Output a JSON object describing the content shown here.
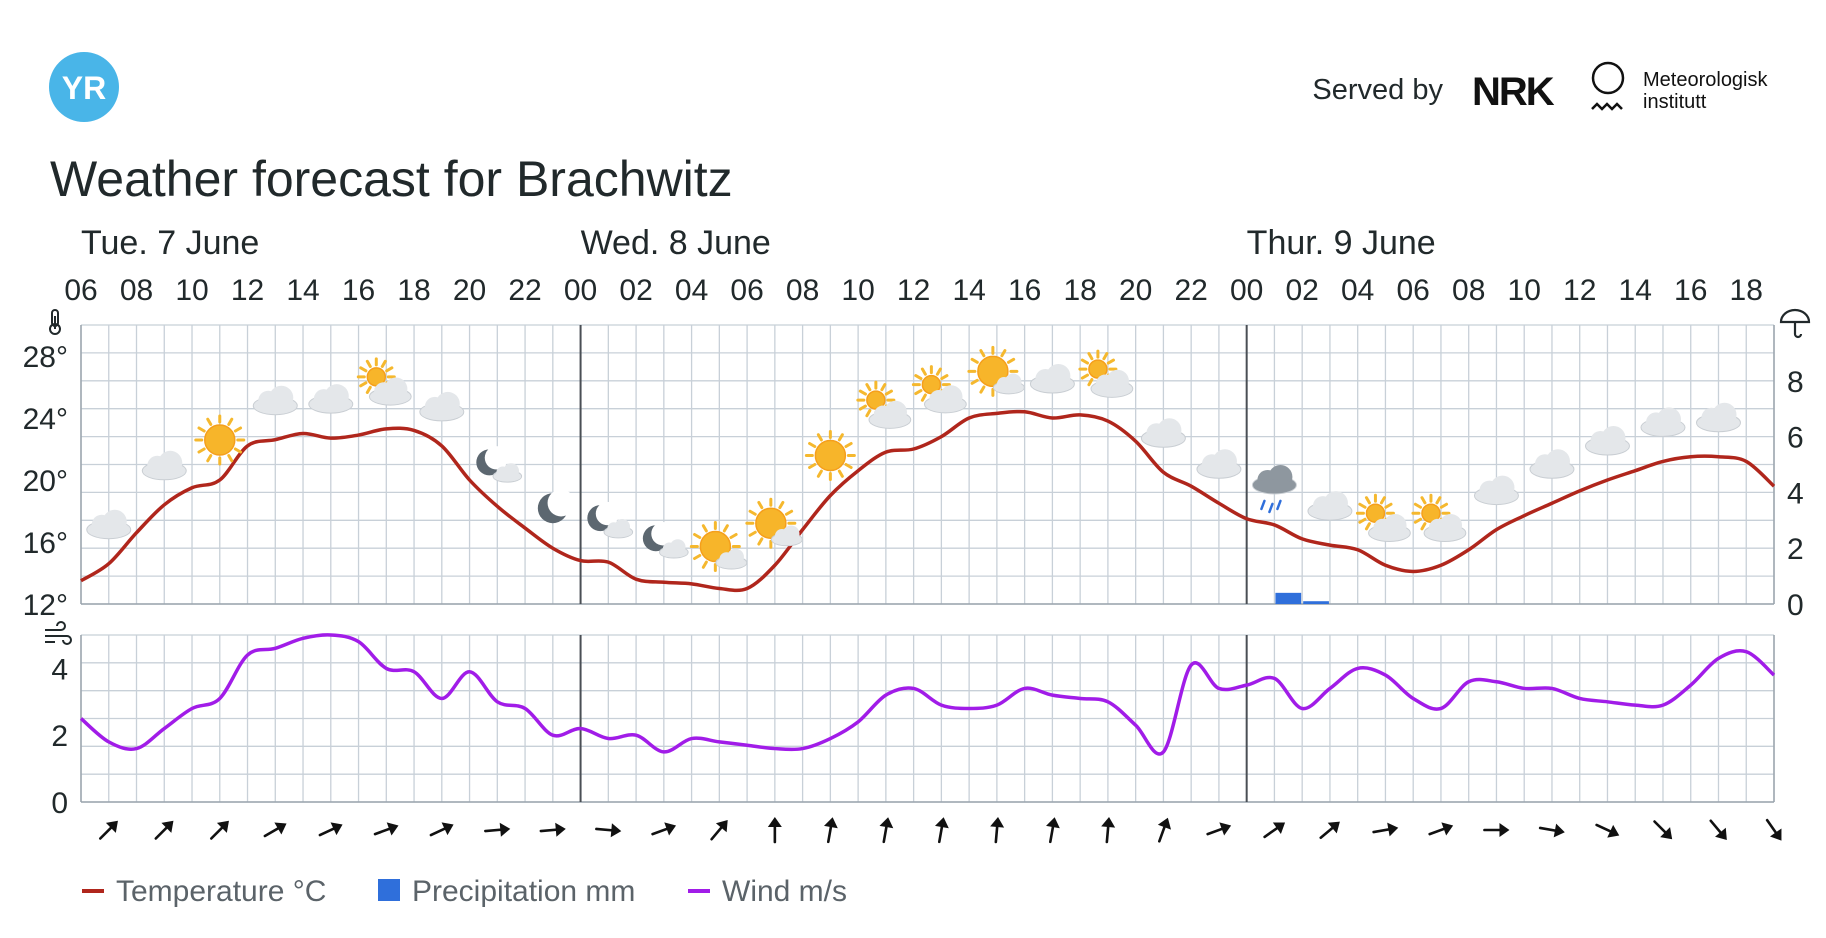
{
  "header": {
    "logo_text": "YR",
    "served_by": "Served by",
    "nrk_logo_text": "NRK",
    "met_logo_line1": "Meteorologisk",
    "met_logo_line2": "institutt"
  },
  "title": "Weather forecast for Brachwitz",
  "days": [
    {
      "label": "Tue. 7 June",
      "hour_index": 0
    },
    {
      "label": "Wed. 8 June",
      "hour_index": 18
    },
    {
      "label": "Thur. 9 June",
      "hour_index": 42
    }
  ],
  "hour_labels": [
    "06",
    "08",
    "10",
    "12",
    "14",
    "16",
    "18",
    "20",
    "22",
    "00",
    "02",
    "04",
    "06",
    "08",
    "10",
    "12",
    "14",
    "16",
    "18",
    "20",
    "22",
    "00",
    "02",
    "04",
    "06",
    "08",
    "10",
    "12",
    "14",
    "16",
    "18"
  ],
  "top_axis_left_ticks": [
    "12°",
    "16°",
    "20°",
    "24°",
    "28°"
  ],
  "top_axis_right_ticks": [
    "0",
    "2",
    "4",
    "6",
    "8"
  ],
  "bottom_axis_ticks": [
    "0",
    "2",
    "4"
  ],
  "axis_icons": {
    "temperature": "thermometer-icon",
    "precipitation": "umbrella-icon",
    "wind": "wind-icon"
  },
  "colors": {
    "temperature": "#b0261c",
    "precipitation": "#2f6fdb",
    "wind": "#a11ce8",
    "grid": "#c8d0d8",
    "day_divider": "#4a4f55"
  },
  "chart_data": [
    {
      "type": "line",
      "hours_from_start": [
        0,
        1,
        2,
        3,
        4,
        5,
        6,
        7,
        8,
        9,
        10,
        11,
        12,
        13,
        14,
        15,
        16,
        17,
        18,
        19,
        20,
        21,
        22,
        23,
        24,
        25,
        26,
        27,
        28,
        29,
        30,
        31,
        32,
        33,
        34,
        35,
        36,
        37,
        38,
        39,
        40,
        41,
        42,
        43,
        44,
        45,
        46,
        47,
        48,
        49,
        50,
        51,
        52,
        53,
        54,
        55,
        56,
        57,
        58,
        59,
        60,
        61
      ],
      "x_start_label": "Tue. 7 June 06",
      "x_step_hours": 1,
      "ylim": [
        12,
        30
      ],
      "series": [
        {
          "name": "Temperature °C",
          "axis": "left",
          "values": [
            13.5,
            14.6,
            16.6,
            18.4,
            19.5,
            20.0,
            22.2,
            22.6,
            23.0,
            22.7,
            22.9,
            23.3,
            23.2,
            22.2,
            20.0,
            18.3,
            16.9,
            15.6,
            14.8,
            14.7,
            13.6,
            13.4,
            13.3,
            13.0,
            13.0,
            14.5,
            16.8,
            19.0,
            20.6,
            21.8,
            22.0,
            22.8,
            24.0,
            24.3,
            24.4,
            24.0,
            24.2,
            23.8,
            22.5,
            20.5,
            19.6,
            18.5,
            17.5,
            17.1,
            16.2,
            15.8,
            15.5,
            14.5,
            14.1,
            14.5,
            15.5,
            16.8,
            17.7,
            18.5,
            19.3,
            20.0,
            20.6,
            21.2,
            21.5,
            21.5,
            21.2,
            19.6
          ]
        }
      ]
    },
    {
      "type": "bar",
      "hours_from_start": [
        43,
        44
      ],
      "ylim": [
        0,
        10
      ],
      "series": [
        {
          "name": "Precipitation mm",
          "axis": "right",
          "values": [
            0.4,
            0.1
          ]
        }
      ]
    },
    {
      "type": "line",
      "hours_from_start": [
        0,
        1,
        2,
        3,
        4,
        5,
        6,
        7,
        8,
        9,
        10,
        11,
        12,
        13,
        14,
        15,
        16,
        17,
        18,
        19,
        20,
        21,
        22,
        23,
        24,
        25,
        26,
        27,
        28,
        29,
        30,
        31,
        32,
        33,
        34,
        35,
        36,
        37,
        38,
        39,
        40,
        41,
        42,
        43,
        44,
        45,
        46,
        47,
        48,
        49,
        50,
        51,
        52,
        53,
        54,
        55,
        56,
        57,
        58,
        59,
        60,
        61
      ],
      "ylim": [
        0,
        5
      ],
      "series": [
        {
          "name": "Wind m/s",
          "values": [
            2.5,
            1.8,
            1.6,
            2.2,
            2.8,
            3.1,
            4.4,
            4.6,
            4.9,
            5.0,
            4.8,
            4.0,
            3.9,
            3.1,
            3.9,
            3.0,
            2.8,
            2.0,
            2.2,
            1.9,
            2.0,
            1.5,
            1.9,
            1.8,
            1.7,
            1.6,
            1.6,
            1.9,
            2.4,
            3.2,
            3.4,
            2.9,
            2.8,
            2.9,
            3.4,
            3.2,
            3.1,
            3.0,
            2.3,
            1.5,
            4.1,
            3.4,
            3.5,
            3.7,
            2.8,
            3.4,
            4.0,
            3.8,
            3.1,
            2.8,
            3.6,
            3.6,
            3.4,
            3.4,
            3.1,
            3.0,
            2.9,
            2.9,
            3.5,
            4.3,
            4.5,
            3.8
          ]
        }
      ]
    }
  ],
  "weather_symbols": [
    {
      "hour": 1,
      "symbol": "cloudy"
    },
    {
      "hour": 3,
      "symbol": "cloudy"
    },
    {
      "hour": 5,
      "symbol": "clear-sun"
    },
    {
      "hour": 7,
      "symbol": "cloudy"
    },
    {
      "hour": 9,
      "symbol": "cloudy"
    },
    {
      "hour": 11,
      "symbol": "partly-cloudy-day"
    },
    {
      "hour": 13,
      "symbol": "cloudy"
    },
    {
      "hour": 15,
      "symbol": "partly-cloudy-night"
    },
    {
      "hour": 17,
      "symbol": "clear-night"
    },
    {
      "hour": 19,
      "symbol": "partly-cloudy-night"
    },
    {
      "hour": 21,
      "symbol": "partly-cloudy-night"
    },
    {
      "hour": 23,
      "symbol": "fair-day"
    },
    {
      "hour": 25,
      "symbol": "fair-day"
    },
    {
      "hour": 27,
      "symbol": "clear-sun"
    },
    {
      "hour": 29,
      "symbol": "partly-cloudy-day"
    },
    {
      "hour": 31,
      "symbol": "partly-cloudy-day"
    },
    {
      "hour": 33,
      "symbol": "fair-day"
    },
    {
      "hour": 35,
      "symbol": "cloudy"
    },
    {
      "hour": 37,
      "symbol": "partly-cloudy-day"
    },
    {
      "hour": 39,
      "symbol": "cloudy"
    },
    {
      "hour": 41,
      "symbol": "cloudy"
    },
    {
      "hour": 43,
      "symbol": "rain"
    },
    {
      "hour": 45,
      "symbol": "cloudy"
    },
    {
      "hour": 47,
      "symbol": "partly-cloudy-day"
    },
    {
      "hour": 49,
      "symbol": "partly-cloudy-day"
    },
    {
      "hour": 51,
      "symbol": "cloudy"
    },
    {
      "hour": 53,
      "symbol": "cloudy"
    },
    {
      "hour": 55,
      "symbol": "cloudy"
    },
    {
      "hour": 57,
      "symbol": "cloudy"
    },
    {
      "hour": 59,
      "symbol": "cloudy"
    }
  ],
  "wind_arrows": [
    {
      "hour": 1,
      "direction_deg": 45
    },
    {
      "hour": 3,
      "direction_deg": 45
    },
    {
      "hour": 5,
      "direction_deg": 45
    },
    {
      "hour": 7,
      "direction_deg": 60
    },
    {
      "hour": 9,
      "direction_deg": 65
    },
    {
      "hour": 11,
      "direction_deg": 70
    },
    {
      "hour": 13,
      "direction_deg": 65
    },
    {
      "hour": 15,
      "direction_deg": 85
    },
    {
      "hour": 17,
      "direction_deg": 85
    },
    {
      "hour": 19,
      "direction_deg": 95
    },
    {
      "hour": 21,
      "direction_deg": 70
    },
    {
      "hour": 23,
      "direction_deg": 40
    },
    {
      "hour": 25,
      "direction_deg": 0
    },
    {
      "hour": 27,
      "direction_deg": 10
    },
    {
      "hour": 29,
      "direction_deg": 10
    },
    {
      "hour": 31,
      "direction_deg": 10
    },
    {
      "hour": 33,
      "direction_deg": 5
    },
    {
      "hour": 35,
      "direction_deg": 10
    },
    {
      "hour": 37,
      "direction_deg": 5
    },
    {
      "hour": 39,
      "direction_deg": 20
    },
    {
      "hour": 41,
      "direction_deg": 70
    },
    {
      "hour": 43,
      "direction_deg": 55
    },
    {
      "hour": 45,
      "direction_deg": 50
    },
    {
      "hour": 47,
      "direction_deg": 80
    },
    {
      "hour": 49,
      "direction_deg": 70
    },
    {
      "hour": 51,
      "direction_deg": 90
    },
    {
      "hour": 53,
      "direction_deg": 100
    },
    {
      "hour": 55,
      "direction_deg": 115
    },
    {
      "hour": 57,
      "direction_deg": 135
    },
    {
      "hour": 59,
      "direction_deg": 140
    },
    {
      "hour": 61,
      "direction_deg": 145
    }
  ],
  "legend": [
    {
      "label": "Temperature °C",
      "kind": "line",
      "color": "#b0261c"
    },
    {
      "label": "Precipitation mm",
      "kind": "box",
      "color": "#2f6fdb"
    },
    {
      "label": "Wind m/s",
      "kind": "line",
      "color": "#a11ce8"
    }
  ]
}
